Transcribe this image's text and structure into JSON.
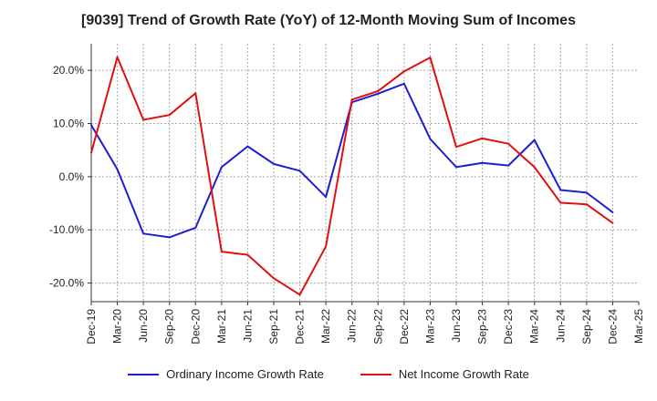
{
  "chart_data": {
    "type": "line",
    "title": "[9039]  Trend of Growth Rate (YoY) of 12-Month Moving Sum of Incomes",
    "xlabel": "",
    "ylabel": "",
    "ylim": [
      -23.5,
      25
    ],
    "yticks": [
      20,
      10,
      0,
      -10,
      -20
    ],
    "ytick_labels": [
      "20.0%",
      "10.0%",
      "0.0%",
      "-10.0%",
      "-20.0%"
    ],
    "categories": [
      "Dec-19",
      "Mar-20",
      "Jun-20",
      "Sep-20",
      "Dec-20",
      "Mar-21",
      "Jun-21",
      "Sep-21",
      "Dec-21",
      "Mar-22",
      "Jun-22",
      "Sep-22",
      "Dec-22",
      "Mar-23",
      "Jun-23",
      "Sep-23",
      "Dec-23",
      "Mar-24",
      "Jun-24",
      "Sep-24",
      "Dec-24",
      "Mar-25"
    ],
    "grid": true,
    "legend_position": "bottom",
    "series": [
      {
        "name": "Ordinary Income Growth Rate",
        "color": "#1f1fd0",
        "values": [
          9.7,
          1.4,
          -10.7,
          -11.4,
          -9.6,
          1.8,
          5.7,
          2.4,
          1.1,
          -3.8,
          14.0,
          15.6,
          17.5,
          7.1,
          1.8,
          2.6,
          2.1,
          6.9,
          -2.5,
          -3.0,
          -6.7,
          null
        ]
      },
      {
        "name": "Net Income Growth Rate",
        "color": "#e01010",
        "values": [
          4.5,
          22.5,
          10.7,
          11.6,
          15.7,
          -14.1,
          -14.7,
          -19.1,
          -22.2,
          -13.1,
          14.5,
          16.1,
          19.8,
          22.4,
          5.6,
          7.2,
          6.2,
          1.8,
          -4.9,
          -5.2,
          -8.7,
          null
        ]
      }
    ]
  }
}
